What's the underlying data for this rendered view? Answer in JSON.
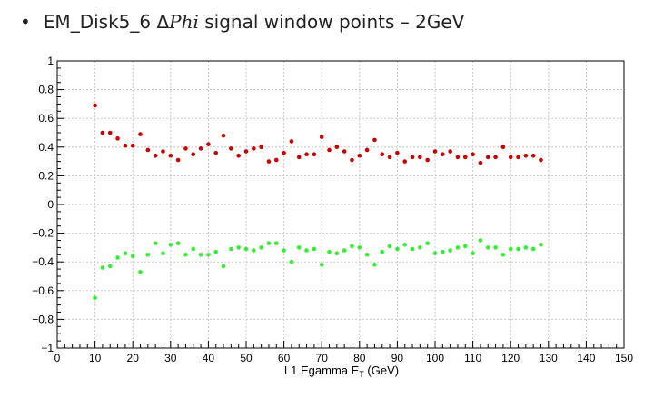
{
  "slide": {
    "bullet": "•",
    "title_prefix": "EM_Disk5_6 Δ",
    "title_phi": "Phi",
    "title_suffix": " signal window points – 2GeV"
  },
  "chart_data": {
    "type": "scatter",
    "title": "",
    "xlabel": "L1 Egamma E",
    "xlabel_sub": "T",
    "xlabel_unit": " (GeV)",
    "ylabel": "",
    "xlim": [
      0,
      150
    ],
    "ylim": [
      -1,
      1
    ],
    "x_ticks": [
      0,
      10,
      20,
      30,
      40,
      50,
      60,
      70,
      80,
      90,
      100,
      110,
      120,
      130,
      140,
      150
    ],
    "y_ticks": [
      -1,
      -0.8,
      -0.6,
      -0.4,
      -0.2,
      0,
      0.2,
      0.4,
      0.6,
      0.8,
      1
    ],
    "x_tick_labels": [
      "0",
      "10",
      "20",
      "30",
      "40",
      "50",
      "60",
      "70",
      "80",
      "90",
      "100",
      "110",
      "120",
      "130",
      "140",
      "150"
    ],
    "y_tick_labels": [
      "−1",
      "−0.8",
      "−0.6",
      "−0.4",
      "−0.2",
      "0",
      "0.2",
      "0.4",
      "0.6",
      "0.8",
      "1"
    ],
    "grid": true,
    "legend": "none",
    "series": [
      {
        "color": "#cc0000",
        "points": [
          [
            10,
            0.69
          ],
          [
            12,
            0.5
          ],
          [
            14,
            0.5
          ],
          [
            16,
            0.46
          ],
          [
            18,
            0.41
          ],
          [
            20,
            0.41
          ],
          [
            22,
            0.49
          ],
          [
            24,
            0.38
          ],
          [
            26,
            0.34
          ],
          [
            28,
            0.37
          ],
          [
            30,
            0.34
          ],
          [
            32,
            0.31
          ],
          [
            34,
            0.39
          ],
          [
            36,
            0.35
          ],
          [
            38,
            0.39
          ],
          [
            40,
            0.42
          ],
          [
            42,
            0.36
          ],
          [
            44,
            0.48
          ],
          [
            46,
            0.39
          ],
          [
            48,
            0.34
          ],
          [
            50,
            0.37
          ],
          [
            52,
            0.39
          ],
          [
            54,
            0.4
          ],
          [
            56,
            0.3
          ],
          [
            58,
            0.31
          ],
          [
            60,
            0.36
          ],
          [
            62,
            0.44
          ],
          [
            64,
            0.33
          ],
          [
            66,
            0.35
          ],
          [
            68,
            0.35
          ],
          [
            70,
            0.47
          ],
          [
            72,
            0.38
          ],
          [
            74,
            0.4
          ],
          [
            76,
            0.37
          ],
          [
            78,
            0.31
          ],
          [
            80,
            0.34
          ],
          [
            82,
            0.38
          ],
          [
            84,
            0.45
          ],
          [
            86,
            0.35
          ],
          [
            88,
            0.33
          ],
          [
            90,
            0.36
          ],
          [
            92,
            0.3
          ],
          [
            94,
            0.33
          ],
          [
            96,
            0.33
          ],
          [
            98,
            0.31
          ],
          [
            100,
            0.37
          ],
          [
            102,
            0.35
          ],
          [
            104,
            0.37
          ],
          [
            106,
            0.33
          ],
          [
            108,
            0.33
          ],
          [
            110,
            0.35
          ],
          [
            112,
            0.29
          ],
          [
            114,
            0.33
          ],
          [
            116,
            0.33
          ],
          [
            118,
            0.4
          ],
          [
            120,
            0.33
          ],
          [
            122,
            0.33
          ],
          [
            124,
            0.34
          ],
          [
            126,
            0.34
          ],
          [
            128,
            0.31
          ]
        ]
      },
      {
        "color": "#33ee33",
        "points": [
          [
            10,
            -0.65
          ],
          [
            12,
            -0.44
          ],
          [
            14,
            -0.43
          ],
          [
            16,
            -0.37
          ],
          [
            18,
            -0.34
          ],
          [
            20,
            -0.36
          ],
          [
            22,
            -0.47
          ],
          [
            24,
            -0.35
          ],
          [
            26,
            -0.27
          ],
          [
            28,
            -0.34
          ],
          [
            30,
            -0.28
          ],
          [
            32,
            -0.27
          ],
          [
            34,
            -0.35
          ],
          [
            36,
            -0.31
          ],
          [
            38,
            -0.35
          ],
          [
            40,
            -0.35
          ],
          [
            42,
            -0.33
          ],
          [
            44,
            -0.43
          ],
          [
            46,
            -0.31
          ],
          [
            48,
            -0.3
          ],
          [
            50,
            -0.31
          ],
          [
            52,
            -0.32
          ],
          [
            54,
            -0.3
          ],
          [
            56,
            -0.27
          ],
          [
            58,
            -0.27
          ],
          [
            60,
            -0.32
          ],
          [
            62,
            -0.4
          ],
          [
            64,
            -0.3
          ],
          [
            66,
            -0.32
          ],
          [
            68,
            -0.31
          ],
          [
            70,
            -0.42
          ],
          [
            72,
            -0.33
          ],
          [
            74,
            -0.34
          ],
          [
            76,
            -0.32
          ],
          [
            78,
            -0.29
          ],
          [
            80,
            -0.3
          ],
          [
            82,
            -0.35
          ],
          [
            84,
            -0.42
          ],
          [
            86,
            -0.33
          ],
          [
            88,
            -0.29
          ],
          [
            90,
            -0.31
          ],
          [
            92,
            -0.28
          ],
          [
            94,
            -0.31
          ],
          [
            96,
            -0.3
          ],
          [
            98,
            -0.27
          ],
          [
            100,
            -0.34
          ],
          [
            102,
            -0.33
          ],
          [
            104,
            -0.32
          ],
          [
            106,
            -0.3
          ],
          [
            108,
            -0.29
          ],
          [
            110,
            -0.34
          ],
          [
            112,
            -0.25
          ],
          [
            114,
            -0.3
          ],
          [
            116,
            -0.3
          ],
          [
            118,
            -0.35
          ],
          [
            120,
            -0.31
          ],
          [
            122,
            -0.31
          ],
          [
            124,
            -0.3
          ],
          [
            126,
            -0.31
          ],
          [
            128,
            -0.28
          ]
        ]
      }
    ]
  }
}
